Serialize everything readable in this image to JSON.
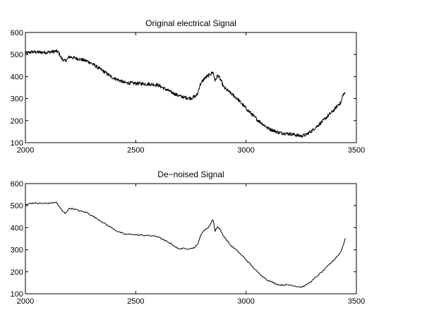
{
  "chart_data": [
    {
      "type": "line",
      "title": "Original electrical Signal",
      "xlabel": "",
      "ylabel": "",
      "xlim": [
        2000,
        3500
      ],
      "ylim": [
        100,
        600
      ],
      "xticks": [
        "2000",
        "2500",
        "3000",
        "3500"
      ],
      "yticks": [
        "100",
        "200",
        "300",
        "400",
        "500",
        "600"
      ],
      "grid": false,
      "series": [
        {
          "color": "#000000",
          "noisy": true,
          "x": [
            2000,
            2030,
            2060,
            2100,
            2140,
            2150,
            2165,
            2180,
            2200,
            2220,
            2250,
            2280,
            2300,
            2330,
            2360,
            2390,
            2420,
            2450,
            2480,
            2520,
            2560,
            2600,
            2630,
            2660,
            2690,
            2720,
            2750,
            2770,
            2780,
            2790,
            2810,
            2830,
            2850,
            2860,
            2870,
            2880,
            2900,
            2930,
            2960,
            3000,
            3050,
            3100,
            3150,
            3200,
            3250,
            3270,
            3300,
            3350,
            3400,
            3420,
            3430,
            3440,
            3450
          ],
          "y": [
            505,
            512,
            510,
            510,
            515,
            510,
            480,
            470,
            490,
            485,
            478,
            470,
            460,
            440,
            420,
            398,
            385,
            372,
            370,
            368,
            366,
            362,
            345,
            330,
            315,
            305,
            302,
            310,
            320,
            360,
            390,
            405,
            420,
            380,
            405,
            395,
            350,
            325,
            300,
            255,
            205,
            165,
            145,
            140,
            130,
            135,
            155,
            200,
            250,
            275,
            280,
            320,
            322
          ]
        }
      ]
    },
    {
      "type": "line",
      "title": "De−noised Signal",
      "xlabel": "",
      "ylabel": "",
      "xlim": [
        2000,
        3500
      ],
      "ylim": [
        100,
        600
      ],
      "xticks": [
        "2000",
        "2500",
        "3000",
        "3500"
      ],
      "yticks": [
        "100",
        "200",
        "300",
        "400",
        "500",
        "600"
      ],
      "grid": false,
      "series": [
        {
          "color": "#000000",
          "noisy": false,
          "x": [
            2000,
            2030,
            2060,
            2100,
            2140,
            2150,
            2165,
            2180,
            2200,
            2220,
            2250,
            2280,
            2300,
            2330,
            2360,
            2390,
            2420,
            2450,
            2480,
            2520,
            2560,
            2600,
            2630,
            2660,
            2690,
            2720,
            2750,
            2770,
            2780,
            2790,
            2810,
            2830,
            2850,
            2860,
            2870,
            2880,
            2900,
            2930,
            2960,
            3000,
            3050,
            3100,
            3150,
            3200,
            3250,
            3270,
            3300,
            3350,
            3400,
            3420,
            3430,
            3440,
            3450
          ],
          "y": [
            505,
            512,
            510,
            510,
            515,
            500,
            478,
            465,
            488,
            485,
            475,
            468,
            455,
            438,
            418,
            400,
            382,
            370,
            370,
            366,
            364,
            360,
            342,
            328,
            305,
            305,
            305,
            312,
            322,
            355,
            390,
            400,
            440,
            385,
            405,
            395,
            360,
            320,
            295,
            255,
            200,
            160,
            140,
            140,
            130,
            138,
            160,
            205,
            255,
            278,
            290,
            320,
            352
          ]
        }
      ]
    }
  ]
}
